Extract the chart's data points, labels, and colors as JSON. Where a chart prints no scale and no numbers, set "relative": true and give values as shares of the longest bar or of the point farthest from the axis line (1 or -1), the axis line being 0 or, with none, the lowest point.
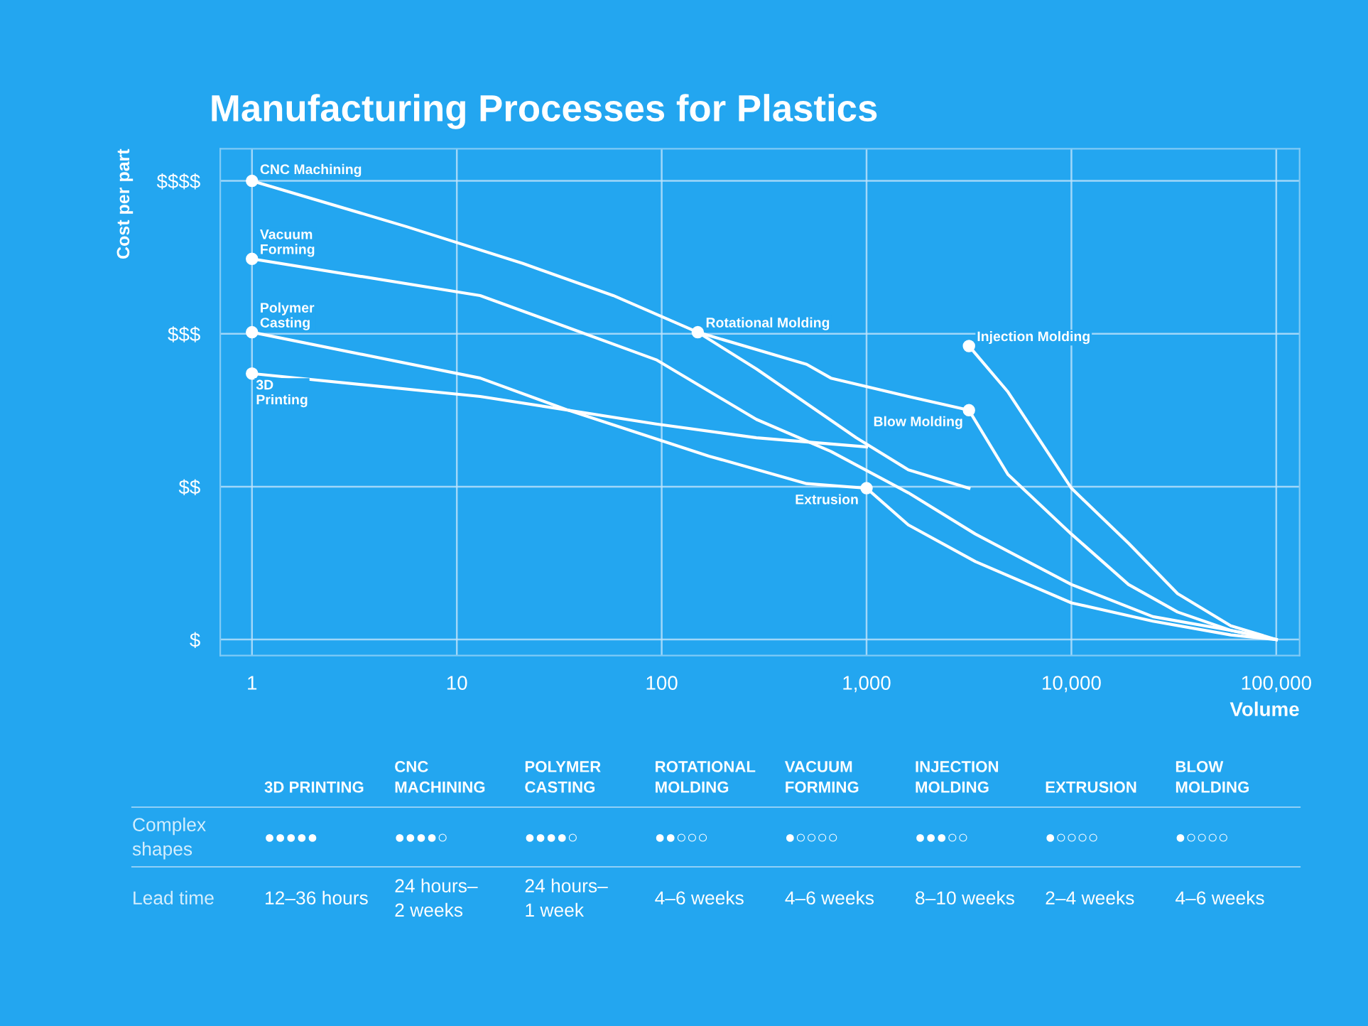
{
  "chart_data": {
    "type": "line",
    "title": "Manufacturing Processes for Plastics",
    "xlabel": "Volume",
    "ylabel": "Cost per part",
    "xlim": [
      0.7,
      130000
    ],
    "log": "x",
    "relative": true,
    "xticks": [
      1,
      10,
      100,
      {
        "value": 1000,
        "label": "1,000"
      },
      {
        "value": 10000,
        "label": "10,000"
      },
      {
        "value": 100000,
        "label": "100,000"
      }
    ],
    "grid": true,
    "legend": false,
    "marker": "none",
    "line_style": "solid",
    "series": [
      {
        "color": "#ffffff",
        "x": [
          1,
          5.7,
          21,
          58,
          150,
          290,
          890,
          1600,
          3162
        ],
        "values": [
          1,
          0.9,
          0.82,
          0.75,
          0.67,
          0.59,
          0.44,
          0.37,
          0.33
        ]
      },
      {
        "color": "#ffffff",
        "x": [
          150,
          510,
          670,
          1600,
          3162
        ],
        "values": [
          0.67,
          0.6,
          0.57,
          0.53,
          0.5
        ]
      },
      {
        "color": "#ffffff",
        "x": [
          1,
          13,
          94,
          290,
          670,
          1600,
          3400,
          10000,
          25000,
          60000,
          100000
        ],
        "values": [
          0.83,
          0.75,
          0.61,
          0.48,
          0.41,
          0.32,
          0.23,
          0.12,
          0.05,
          0.02,
          0
        ]
      },
      {
        "color": "#ffffff",
        "x": [
          1,
          13,
          35,
          170,
          510,
          1000
        ],
        "values": [
          0.67,
          0.57,
          0.5,
          0.4,
          0.34,
          0.33
        ]
      },
      {
        "color": "#ffffff",
        "x": [
          1,
          13,
          94,
          290,
          1000
        ],
        "values": [
          0.58,
          0.53,
          0.47,
          0.44,
          0.42
        ]
      },
      {
        "color": "#ffffff",
        "x": [
          1000,
          1600,
          3400,
          10000,
          25000,
          60000,
          100000
        ],
        "values": [
          0.33,
          0.25,
          0.17,
          0.08,
          0.04,
          0.01,
          0
        ]
      },
      {
        "color": "#ffffff",
        "x": [
          3162,
          4900,
          10000,
          19000,
          33000,
          60000,
          100000
        ],
        "values": [
          0.5,
          0.36,
          0.23,
          0.12,
          0.06,
          0.02,
          0
        ]
      },
      {
        "color": "#ffffff",
        "x": [
          3162,
          4900,
          10000,
          19000,
          33000,
          60000,
          100000
        ],
        "values": [
          0.64,
          0.54,
          0.33,
          0.21,
          0.1,
          0.03,
          0
        ]
      },
      {
        "type": "scatter",
        "marker": "circle",
        "color": "#ffffff",
        "x": [
          1,
          1,
          1,
          1,
          150,
          3162,
          3162,
          1000
        ],
        "values": [
          1,
          0.83,
          0.67,
          0.58,
          0.67,
          0.64,
          0.5,
          0.33
        ]
      }
    ],
    "annotations": [
      {
        "text": "CNC Machining",
        "x": 1,
        "y": 1
      },
      {
        "text": "Vacuum\nForming",
        "x": 1,
        "y": 0.83
      },
      {
        "text": "Polymer\nCasting",
        "x": 1,
        "y": 0.67
      },
      {
        "text": "3D\nPrinting",
        "x": 1,
        "y": 0.58
      },
      {
        "text": "Rotational Molding",
        "x": 150,
        "y": 0.67
      },
      {
        "text": "Injection Molding",
        "x": 3162,
        "y": 0.64
      },
      {
        "text": "Blow Molding",
        "x": 3162,
        "y": 0.5
      },
      {
        "text": "Extrusion",
        "x": 1000,
        "y": 0.33
      },
      "$",
      "$$",
      "$$$",
      "$$$$",
      "3D PRINTING",
      "CNC\nMACHINING",
      "POLYMER\nCASTING",
      "ROTATIONAL\nMOLDING",
      "VACUUM\nFORMING",
      "INJECTION\nMOLDING",
      "EXTRUSION",
      "BLOW\nMOLDING",
      "Complex\nshapes",
      "●●●●●",
      "●●●●○",
      "●●●●○",
      "●●○○○",
      "●○○○○",
      "●●●○○",
      "●○○○○",
      "●○○○○",
      "Lead time",
      "12–36 hours",
      "24 hours–\n2 weeks",
      "24 hours–\n1 week",
      "4–6 weeks",
      "4–6 weeks",
      "8–10 weeks",
      "2–4 weeks",
      "4–6 weeks"
    ]
  }
}
